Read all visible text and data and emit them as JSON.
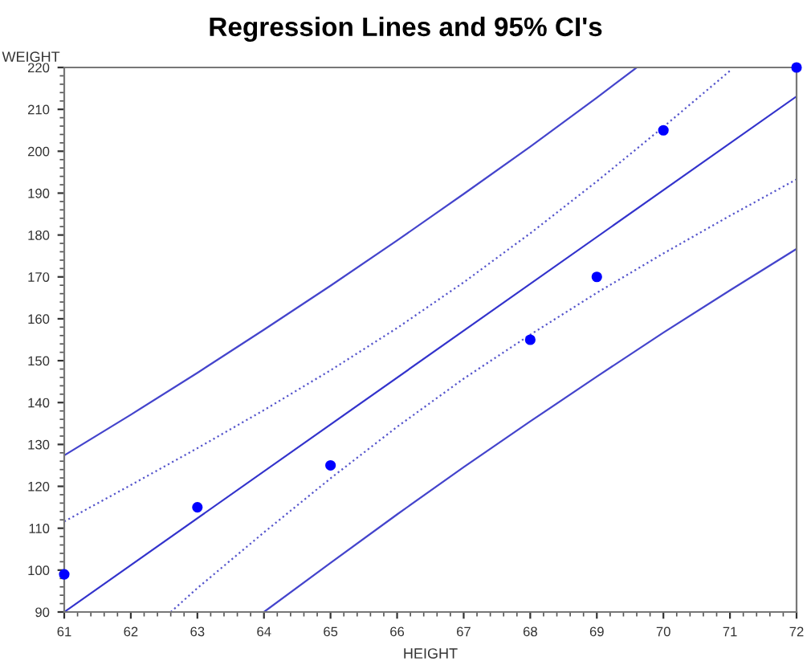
{
  "chart_data": {
    "type": "scatter",
    "title": "Regression Lines and 95% CI's",
    "xlabel": "HEIGHT",
    "ylabel": "WEIGHT",
    "xlim": [
      61,
      72
    ],
    "xticks": [
      61,
      62,
      63,
      64,
      65,
      66,
      67,
      68,
      69,
      70,
      71,
      72
    ],
    "ylim": [
      90,
      220
    ],
    "yticks": [
      90,
      100,
      110,
      120,
      130,
      140,
      150,
      160,
      170,
      180,
      190,
      200,
      210,
      220
    ],
    "grid": false,
    "legend": false,
    "series": [
      {
        "color": "#0000ff",
        "marker": "circle",
        "x": [
          61,
          63,
          65,
          68,
          69,
          70,
          72
        ],
        "values": [
          99,
          115,
          125,
          155,
          170,
          205,
          220
        ]
      },
      {
        "type": "line",
        "color": "#3333cc",
        "line_style": "solid",
        "x": [
          61,
          72
        ],
        "values": [
          90,
          213.1
        ]
      },
      {
        "type": "line",
        "color": "#5555cc",
        "line_style": "dotted",
        "x": [
          61,
          62,
          63,
          64,
          65,
          66,
          67,
          68,
          69,
          70,
          71
        ],
        "values": [
          111.6,
          120.3,
          129.1,
          138.2,
          147.7,
          157.8,
          168.7,
          180.4,
          192.8,
          205.8,
          219.2
        ]
      },
      {
        "type": "line",
        "color": "#5555cc",
        "line_style": "dotted",
        "x": [
          62.6,
          63,
          64,
          65,
          66,
          67,
          68,
          69,
          70,
          71,
          72
        ],
        "values": [
          90,
          95.7,
          109.0,
          121.9,
          134.2,
          145.7,
          156.2,
          166.2,
          175.6,
          184.6,
          193.3
        ]
      },
      {
        "type": "line",
        "color": "#4444cc",
        "line_style": "solid",
        "x": [
          61,
          62,
          63,
          64,
          65,
          66,
          67,
          68,
          69,
          69.6
        ],
        "values": [
          127.4,
          137.1,
          147.1,
          157.4,
          167.9,
          178.7,
          189.8,
          201.1,
          212.8,
          220
        ]
      },
      {
        "type": "line",
        "color": "#4444cc",
        "line_style": "solid",
        "x": [
          64,
          65,
          66,
          67,
          68,
          69,
          70,
          71,
          72
        ],
        "values": [
          90,
          101.7,
          113.3,
          124.6,
          135.5,
          146.2,
          156.7,
          166.8,
          176.7
        ]
      }
    ]
  }
}
